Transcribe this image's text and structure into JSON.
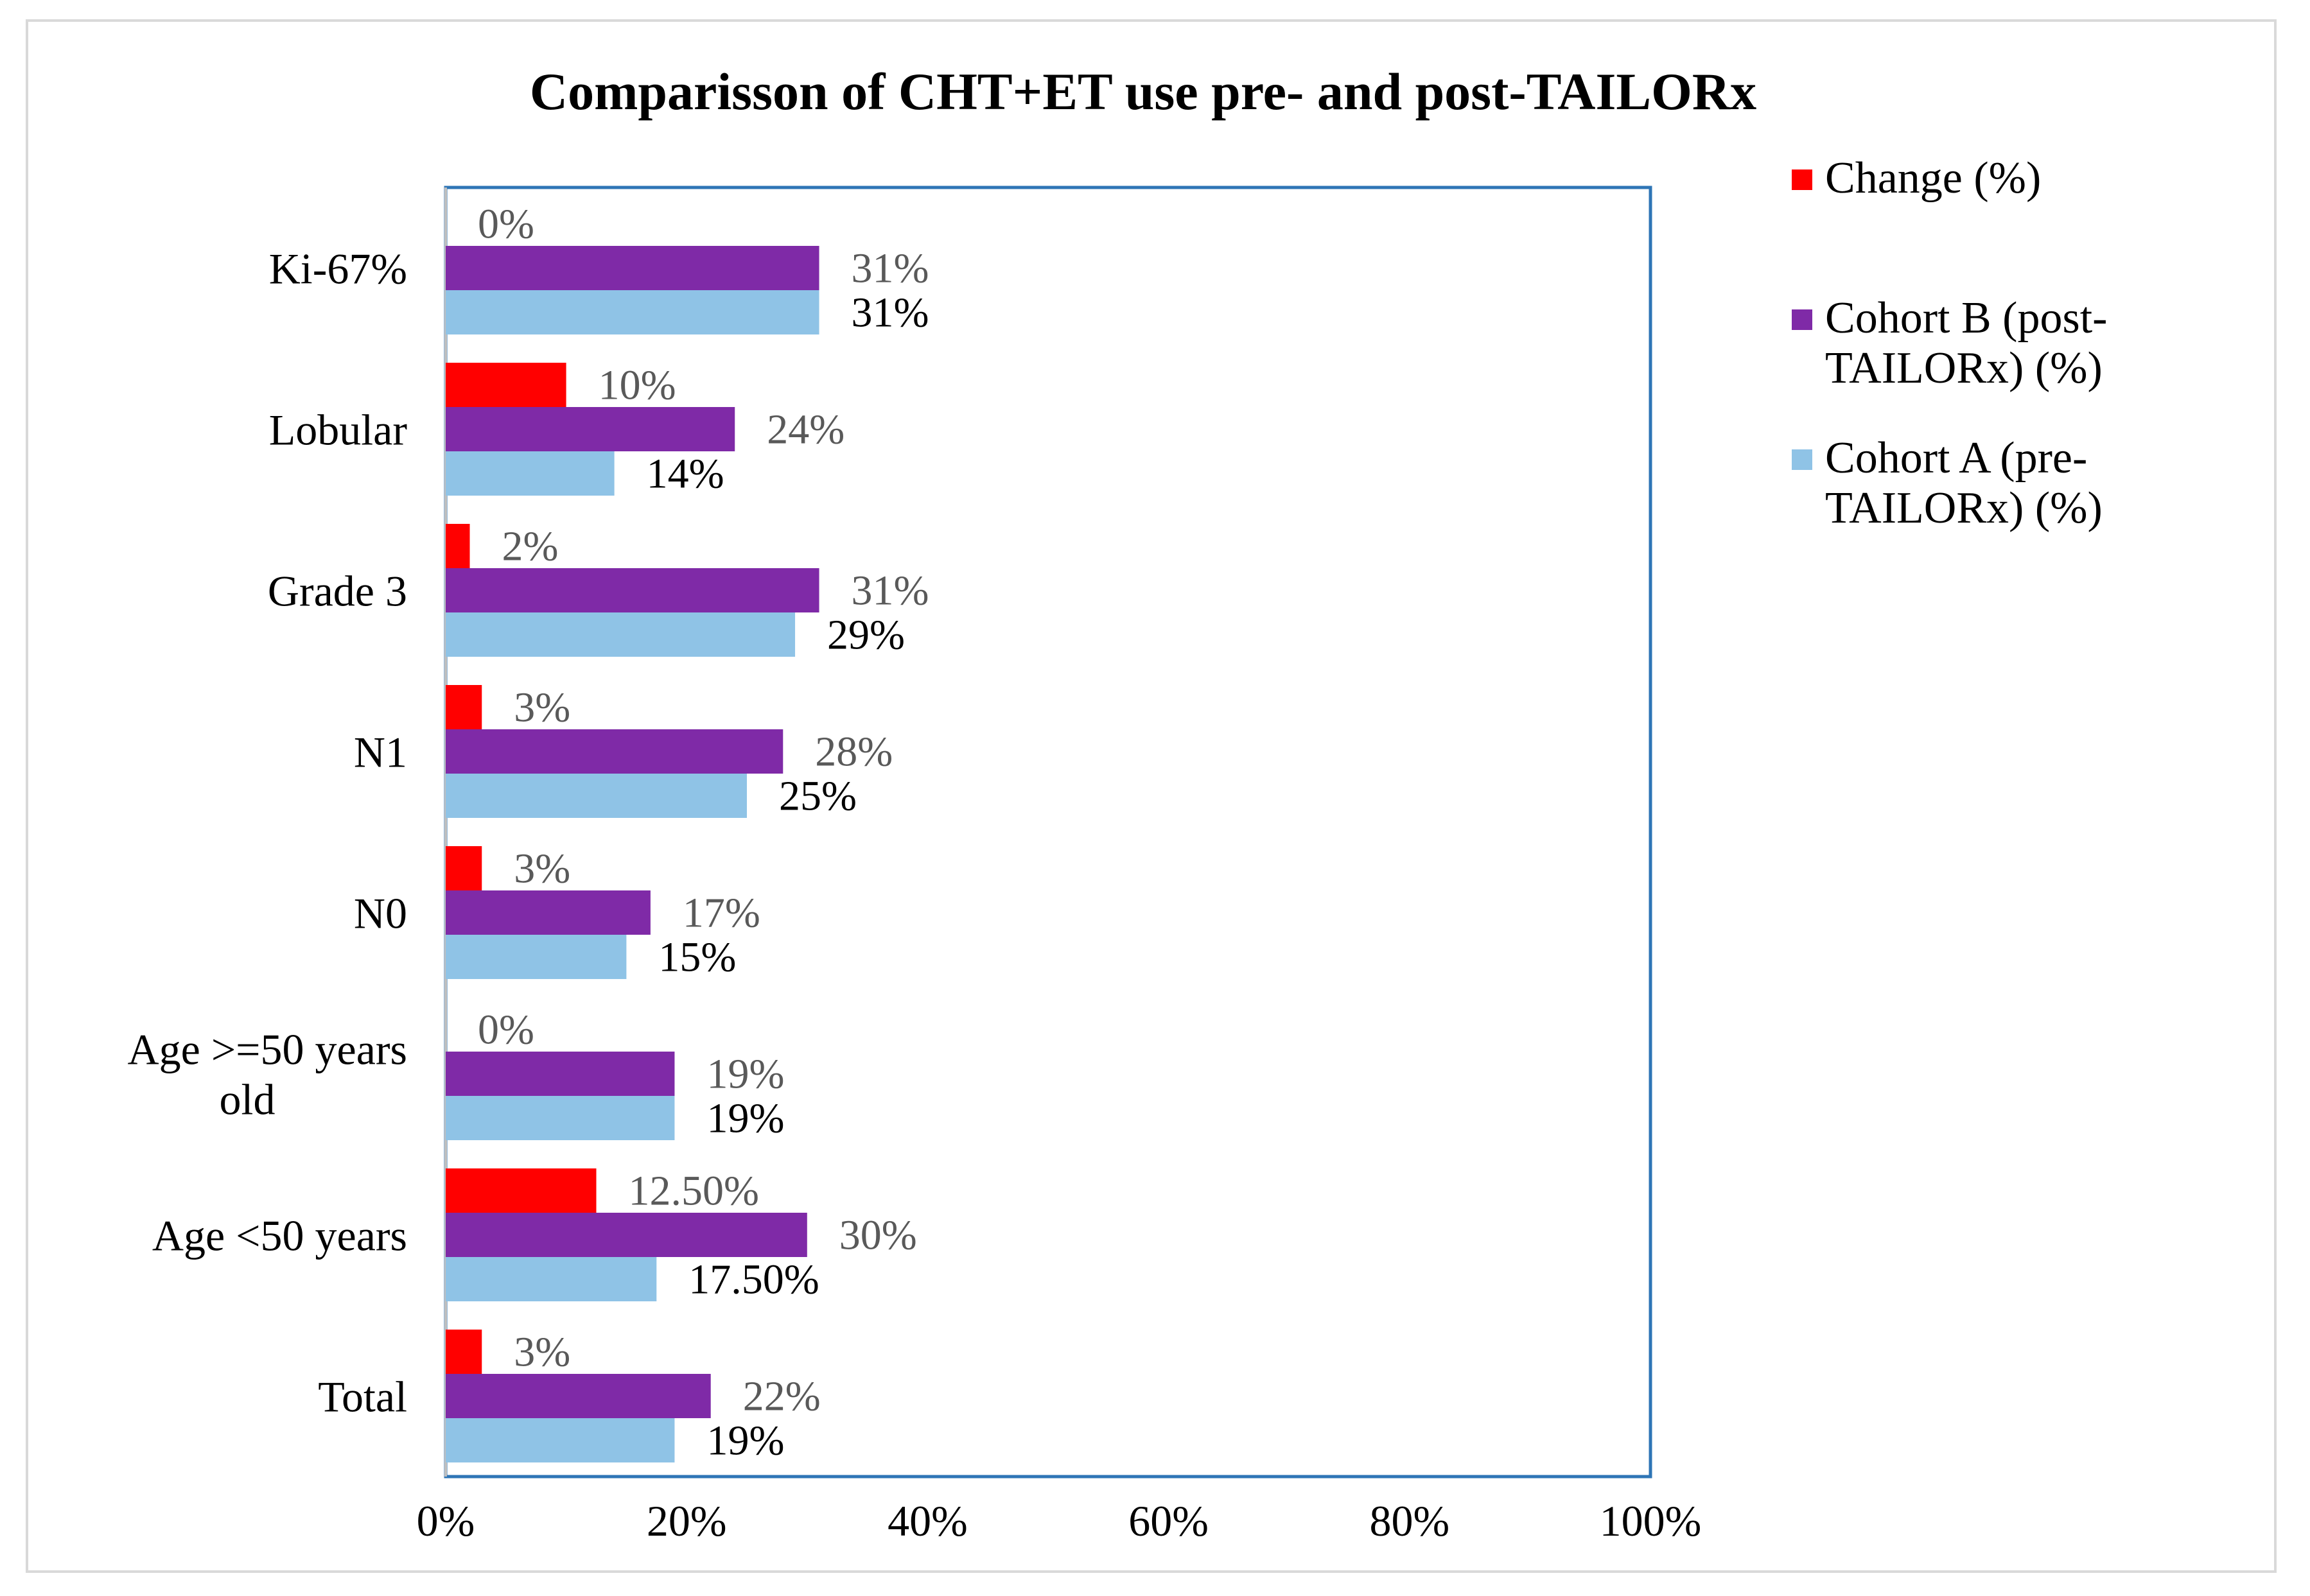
{
  "chart_data": {
    "type": "bar",
    "orientation": "horizontal",
    "title": "Comparisson of CHT+ET use pre- and post-TAILORx",
    "categories": [
      "Ki-67%",
      "Lobular",
      "Grade 3",
      "N1",
      "N0",
      "Age >=50 years old",
      "Age <50 years",
      "Total"
    ],
    "category_label_lines": [
      [
        "Ki-67%"
      ],
      [
        "Lobular"
      ],
      [
        "Grade 3"
      ],
      [
        "N1"
      ],
      [
        "N0"
      ],
      [
        "Age >=50 years",
        "old"
      ],
      [
        "Age <50 years"
      ],
      [
        "Total"
      ]
    ],
    "series": [
      {
        "name": "Change (%)",
        "legend_lines": [
          "Change (%)"
        ],
        "color": "#ff0000",
        "values": [
          0,
          10,
          2,
          3,
          3,
          0,
          12.5,
          3
        ],
        "labels": [
          "0%",
          "10%",
          "2%",
          "3%",
          "3%",
          "0%",
          "12.50%",
          "3%"
        ]
      },
      {
        "name": "Cohort B (post-TAILORx) (%)",
        "legend_lines": [
          "Cohort B (post-",
          "TAILORx) (%)"
        ],
        "color": "#7f2aa7",
        "values": [
          31,
          24,
          31,
          28,
          17,
          19,
          30,
          22
        ],
        "labels": [
          "31%",
          "24%",
          "31%",
          "28%",
          "17%",
          "19%",
          "30%",
          "22%"
        ]
      },
      {
        "name": "Cohort A (pre-TAILORx) (%)",
        "legend_lines": [
          "Cohort A (pre-",
          "TAILORx) (%)"
        ],
        "color": "#8fc3e6",
        "values": [
          31,
          14,
          29,
          25,
          15,
          19,
          17.5,
          19
        ],
        "labels": [
          "31%",
          "14%",
          "29%",
          "25%",
          "15%",
          "19%",
          "17.50%",
          "19%"
        ]
      }
    ],
    "xlim": [
      0,
      100
    ],
    "x_ticks": [
      "0%",
      "20%",
      "40%",
      "60%",
      "80%",
      "100%"
    ],
    "grid": false,
    "legend_position": "right",
    "plot_border_color": "#2e75b6"
  }
}
